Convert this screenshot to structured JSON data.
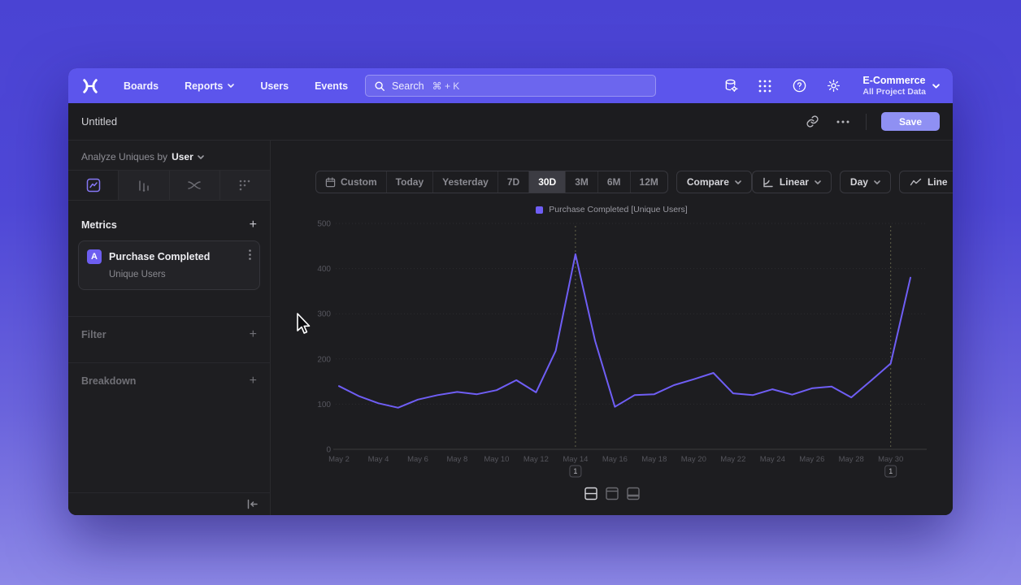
{
  "navbar": {
    "items": [
      {
        "label": "Boards"
      },
      {
        "label": "Reports",
        "chevron": true
      },
      {
        "label": "Users"
      },
      {
        "label": "Events"
      }
    ],
    "search": {
      "label": "Search",
      "shortcut": "⌘ + K"
    },
    "project": {
      "name": "E-Commerce",
      "scope": "All Project Data"
    }
  },
  "titlebar": {
    "title": "Untitled",
    "save_label": "Save"
  },
  "sidebar": {
    "analyze": {
      "prefix": "Analyze Uniques by",
      "value": "User"
    },
    "metrics_header": "Metrics",
    "metric": {
      "badge": "A",
      "name": "Purchase Completed",
      "subtitle": "Unique Users"
    },
    "filter_label": "Filter",
    "breakdown_label": "Breakdown"
  },
  "toolbar": {
    "ranges": [
      {
        "label": "Custom",
        "icon": true
      },
      {
        "label": "Today"
      },
      {
        "label": "Yesterday"
      },
      {
        "label": "7D"
      },
      {
        "label": "30D",
        "active": true
      },
      {
        "label": "3M"
      },
      {
        "label": "6M"
      },
      {
        "label": "12M"
      }
    ],
    "compare_label": "Compare",
    "scale_label": "Linear",
    "granularity_label": "Day",
    "chart_type_label": "Line"
  },
  "chart_data": {
    "type": "line",
    "title": "",
    "legend_position": "top-center",
    "ylim": [
      0,
      500
    ],
    "yticks": [
      0,
      100,
      200,
      300,
      400,
      500
    ],
    "grid": true,
    "series": [
      {
        "name": "Purchase Completed [Unique Users]",
        "color": "#6f5ef5",
        "x": [
          "May 2",
          "May 3",
          "May 4",
          "May 5",
          "May 6",
          "May 7",
          "May 8",
          "May 9",
          "May 10",
          "May 11",
          "May 12",
          "May 13",
          "May 14",
          "May 15",
          "May 16",
          "May 17",
          "May 18",
          "May 19",
          "May 20",
          "May 21",
          "May 22",
          "May 23",
          "May 24",
          "May 25",
          "May 26",
          "May 27",
          "May 28",
          "May 29",
          "May 30",
          "May 31"
        ],
        "values": [
          140,
          118,
          102,
          92,
          110,
          120,
          127,
          122,
          131,
          153,
          126,
          218,
          432,
          240,
          94,
          120,
          122,
          142,
          155,
          169,
          124,
          120,
          133,
          121,
          135,
          139,
          115,
          152,
          190,
          380
        ]
      }
    ],
    "xtick_labels": [
      "May 2",
      "May 4",
      "May 6",
      "May 8",
      "May 10",
      "May 12",
      "May 14",
      "May 16",
      "May 18",
      "May 20",
      "May 22",
      "May 24",
      "May 26",
      "May 28",
      "May 30"
    ],
    "annotations": [
      {
        "x": "May 14",
        "label": "1"
      },
      {
        "x": "May 30",
        "label": "1"
      }
    ]
  }
}
